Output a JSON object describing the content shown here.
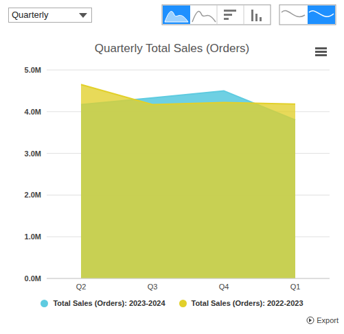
{
  "chart_data": {
    "type": "area",
    "title": "Quarterly Total Sales (Orders)",
    "categories": [
      "Q2",
      "Q3",
      "Q4",
      "Q1"
    ],
    "series": [
      {
        "name": "Total Sales (Orders): 2023-2024",
        "color": "#5ecbe0",
        "values": [
          4170000,
          4330000,
          4500000,
          3800000
        ]
      },
      {
        "name": "Total Sales (Orders): 2022-2023",
        "color": "#e2d02a",
        "values": [
          4650000,
          4170000,
          4220000,
          4180000
        ]
      }
    ],
    "ylim": [
      0,
      5000000
    ],
    "yticks": [
      {
        "value": 0,
        "label": "0.0M"
      },
      {
        "value": 1000000,
        "label": "1.0M"
      },
      {
        "value": 2000000,
        "label": "2.0M"
      },
      {
        "value": 3000000,
        "label": "3.0M"
      },
      {
        "value": 4000000,
        "label": "4.0M"
      },
      {
        "value": 5000000,
        "label": "5.0M"
      }
    ],
    "grid": true,
    "legend": "bottom"
  },
  "controls": {
    "dropdown": "Quarterly",
    "export": "Export"
  }
}
